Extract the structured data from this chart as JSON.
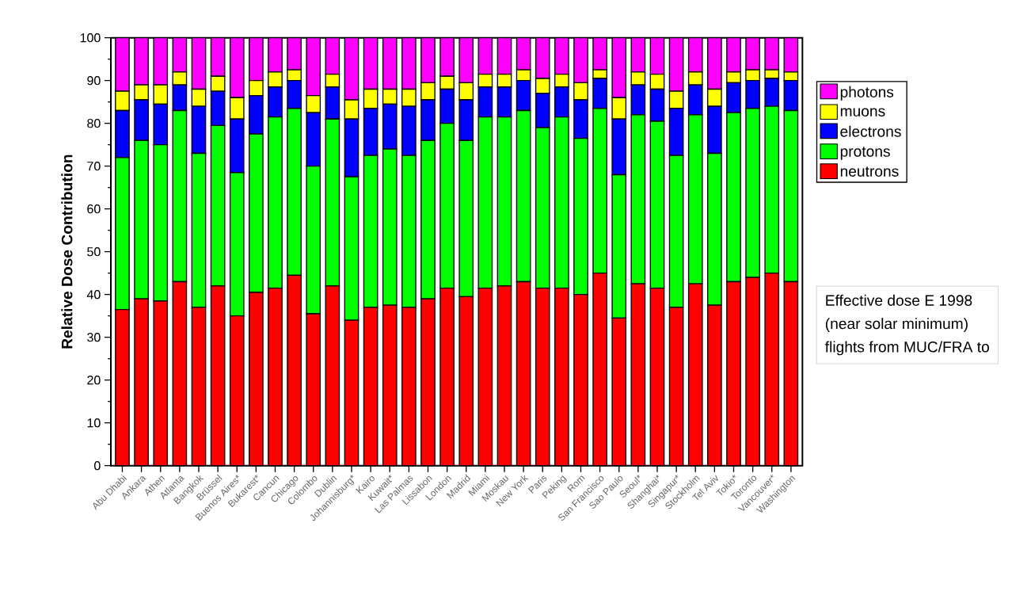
{
  "chart_data": {
    "type": "bar",
    "stacked": true,
    "ylabel": "Relative Dose Contribution",
    "categories": [
      "Abu Dhabi",
      "Ankara",
      "Athen",
      "Atlanta",
      "Bangkok",
      "Brüssel",
      "Buenos Aires*",
      "Bukarest*",
      "Cancun",
      "Chicago",
      "Colombo",
      "Dublin",
      "Johannisburg*",
      "Kairo",
      "Kuwait*",
      "Las Palmas",
      "Lissabon",
      "London",
      "Madrid",
      "Miami",
      "Moskau",
      "New York",
      "Paris",
      "Peking",
      "Rom",
      "San Francisco",
      "Sao Paulo",
      "Seoul*",
      "Shanghai*",
      "Singapur*",
      "Stockholm",
      "Tel Aviv",
      "Tokio*",
      "Toronto",
      "Vancouver*",
      "Washington"
    ],
    "series": [
      {
        "name": "neutrons",
        "color": "#ff0000",
        "values": [
          36.5,
          39,
          38.5,
          43,
          37,
          42,
          35,
          40.5,
          41.5,
          44.5,
          35.5,
          42,
          34,
          37,
          37.5,
          37,
          39,
          41.5,
          39.5,
          41.5,
          42,
          43,
          41.5,
          41.5,
          40,
          45,
          34.5,
          42.5,
          41.5,
          37,
          42.5,
          37.5,
          43,
          44,
          45,
          43
        ]
      },
      {
        "name": "protons",
        "color": "#00ff00",
        "values": [
          35.5,
          37,
          36.5,
          40,
          36,
          37.5,
          33.5,
          37,
          40,
          39,
          34.5,
          39,
          33.5,
          35.5,
          36.5,
          35.5,
          37,
          38.5,
          36.5,
          40,
          39.5,
          40,
          37.5,
          40,
          36.5,
          38.5,
          33.5,
          39.5,
          39,
          35.5,
          39.5,
          35.5,
          39.5,
          39.5,
          39,
          40
        ]
      },
      {
        "name": "electrons",
        "color": "#0000ff",
        "values": [
          11,
          9.5,
          9.5,
          6,
          11,
          8,
          12.5,
          9,
          7,
          6.5,
          12.5,
          7.5,
          13.5,
          11,
          10.5,
          11.5,
          9.5,
          8,
          9.5,
          7,
          7,
          7,
          8,
          7,
          9,
          7,
          13,
          7,
          7.5,
          11,
          7,
          11,
          7,
          6.5,
          6.5,
          7
        ]
      },
      {
        "name": "muons",
        "color": "#ffff00",
        "values": [
          4.5,
          3.5,
          4.5,
          3,
          4,
          3.5,
          5,
          3.5,
          3.5,
          2.5,
          4,
          3,
          4.5,
          4.5,
          3.5,
          4,
          4,
          3,
          4,
          3,
          3,
          2.5,
          3.5,
          3,
          4,
          2,
          5,
          3,
          3.5,
          4,
          3,
          4,
          2.5,
          2.5,
          2,
          2
        ]
      },
      {
        "name": "photons",
        "color": "#ff00ff",
        "values": [
          12.5,
          11,
          11,
          8,
          12,
          9,
          14,
          10,
          8,
          7.5,
          13.5,
          8.5,
          14.5,
          12,
          12,
          12,
          10.5,
          9,
          10.5,
          8.5,
          8.5,
          7.5,
          9.5,
          8.5,
          10.5,
          7.5,
          14,
          8,
          8.5,
          12.5,
          8,
          12,
          8,
          7.5,
          7.5,
          8
        ]
      }
    ],
    "ylim": [
      0,
      100
    ],
    "yticks": [
      0,
      10,
      20,
      30,
      40,
      50,
      60,
      70,
      80,
      90,
      100
    ],
    "legend": "right",
    "annotations": [
      "Effective dose E 1998",
      "(near solar minimum)",
      "flights from MUC/FRA to"
    ]
  }
}
